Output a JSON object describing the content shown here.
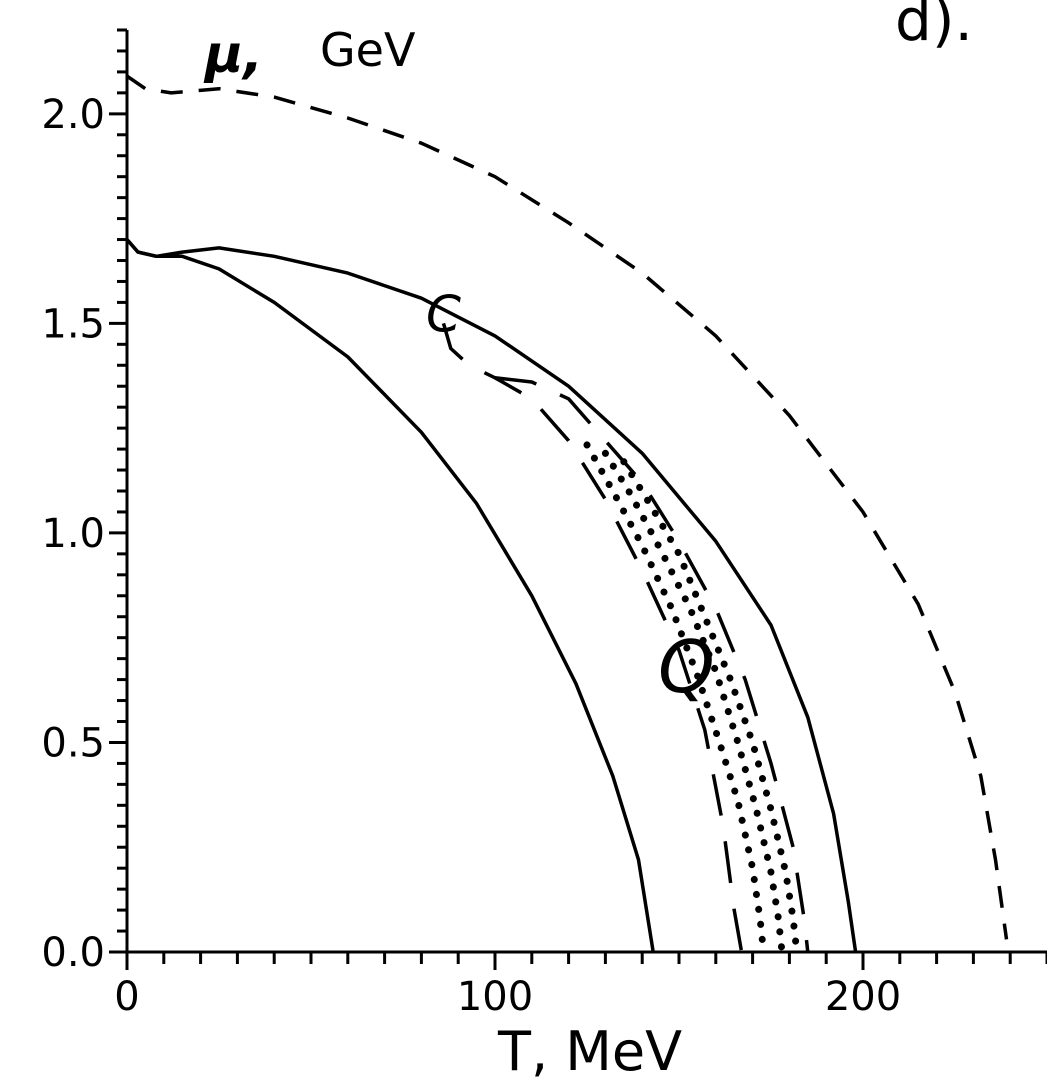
{
  "chart_data": {
    "type": "line",
    "panel_label": "d).",
    "xlabel": "T,  MeV",
    "ylabel_symbol": "μ,",
    "ylabel_unit": "GeV",
    "xlim": [
      0,
      250
    ],
    "ylim": [
      0,
      2.2
    ],
    "x_ticks": [
      0,
      100,
      200
    ],
    "x_tick_labels": [
      "0",
      "100",
      "200"
    ],
    "y_ticks": [
      0,
      0.5,
      1.0,
      1.5,
      2.0
    ],
    "y_tick_labels": [
      "0.0",
      "0.5",
      "1.0",
      "1.5",
      "2.0"
    ],
    "grid": false,
    "annotations": [
      {
        "text": "Q",
        "x": 152,
        "y": 0.62
      },
      {
        "text": "C",
        "x": 86,
        "y": 1.48
      }
    ],
    "series": [
      {
        "style": "short-dashed",
        "points": [
          [
            0,
            2.09
          ],
          [
            5,
            2.06
          ],
          [
            12,
            2.05
          ],
          [
            25,
            2.06
          ],
          [
            40,
            2.04
          ],
          [
            60,
            1.99
          ],
          [
            80,
            1.93
          ],
          [
            100,
            1.85
          ],
          [
            120,
            1.74
          ],
          [
            140,
            1.62
          ],
          [
            160,
            1.47
          ],
          [
            180,
            1.28
          ],
          [
            200,
            1.05
          ],
          [
            215,
            0.83
          ],
          [
            225,
            0.62
          ],
          [
            232,
            0.42
          ],
          [
            236,
            0.22
          ],
          [
            239,
            0.03
          ]
        ]
      },
      {
        "style": "solid",
        "points": [
          [
            0,
            1.7
          ],
          [
            3,
            1.67
          ],
          [
            8,
            1.66
          ],
          [
            15,
            1.67
          ],
          [
            25,
            1.68
          ],
          [
            40,
            1.66
          ],
          [
            60,
            1.62
          ],
          [
            80,
            1.56
          ],
          [
            100,
            1.47
          ],
          [
            120,
            1.35
          ],
          [
            140,
            1.19
          ],
          [
            160,
            0.98
          ],
          [
            175,
            0.78
          ],
          [
            185,
            0.56
          ],
          [
            192,
            0.33
          ],
          [
            196,
            0.12
          ],
          [
            198,
            0.0
          ]
        ]
      },
      {
        "style": "solid",
        "points": [
          [
            0,
            1.7
          ],
          [
            3,
            1.67
          ],
          [
            8,
            1.66
          ],
          [
            15,
            1.66
          ],
          [
            25,
            1.63
          ],
          [
            40,
            1.55
          ],
          [
            60,
            1.42
          ],
          [
            80,
            1.24
          ],
          [
            95,
            1.07
          ],
          [
            110,
            0.85
          ],
          [
            122,
            0.64
          ],
          [
            132,
            0.42
          ],
          [
            139,
            0.22
          ],
          [
            143,
            0.0
          ]
        ]
      },
      {
        "style": "long-dashed",
        "points": [
          [
            86,
            1.5
          ],
          [
            88,
            1.44
          ],
          [
            93,
            1.4
          ],
          [
            100,
            1.37
          ],
          [
            110,
            1.32
          ],
          [
            120,
            1.22
          ],
          [
            130,
            1.08
          ],
          [
            140,
            0.91
          ],
          [
            150,
            0.72
          ],
          [
            157,
            0.53
          ],
          [
            162,
            0.3
          ],
          [
            165,
            0.1
          ],
          [
            167,
            0.0
          ]
        ]
      },
      {
        "style": "long-dashed",
        "points": [
          [
            100,
            1.37
          ],
          [
            110,
            1.36
          ],
          [
            120,
            1.32
          ],
          [
            130,
            1.22
          ],
          [
            140,
            1.12
          ],
          [
            150,
            0.98
          ],
          [
            160,
            0.82
          ],
          [
            168,
            0.65
          ],
          [
            175,
            0.45
          ],
          [
            181,
            0.25
          ],
          [
            184,
            0.08
          ],
          [
            185,
            0.0
          ]
        ]
      },
      {
        "style": "dotted",
        "points": [
          [
            125,
            1.21
          ],
          [
            132,
            1.1
          ],
          [
            140,
            0.97
          ],
          [
            148,
            0.82
          ],
          [
            155,
            0.66
          ],
          [
            161,
            0.5
          ],
          [
            166,
            0.36
          ],
          [
            170,
            0.2
          ],
          [
            172,
            0.08
          ],
          [
            173,
            0.0
          ]
        ]
      },
      {
        "style": "dotted",
        "points": [
          [
            130,
            1.19
          ],
          [
            137,
            1.09
          ],
          [
            145,
            0.96
          ],
          [
            153,
            0.82
          ],
          [
            160,
            0.67
          ],
          [
            166,
            0.5
          ],
          [
            171,
            0.34
          ],
          [
            175,
            0.19
          ],
          [
            177,
            0.08
          ],
          [
            178,
            0.0
          ]
        ]
      },
      {
        "style": "dotted",
        "points": [
          [
            135,
            1.17
          ],
          [
            142,
            1.07
          ],
          [
            150,
            0.95
          ],
          [
            157,
            0.8
          ],
          [
            164,
            0.65
          ],
          [
            170,
            0.5
          ],
          [
            175,
            0.34
          ],
          [
            179,
            0.19
          ],
          [
            181,
            0.08
          ],
          [
            182,
            0.0
          ]
        ]
      }
    ]
  }
}
